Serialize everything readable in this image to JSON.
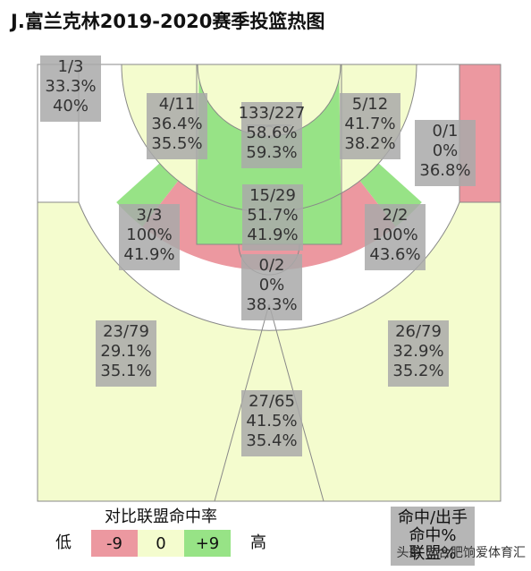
{
  "title": "J.富兰克林2019-2020赛季投篮热图",
  "colors": {
    "hot": "#97e386",
    "avg": "#f4fcce",
    "cold": "#ec98a0",
    "none": "#ffffff",
    "line": "#888888"
  },
  "chart_data": {
    "type": "heatmap",
    "title": "J.富兰克林2019-2020赛季投篮热图",
    "metrics": [
      "made/attempts",
      "fg_pct",
      "league_fg_pct"
    ],
    "zones": [
      {
        "zone": "left-corner-3",
        "made_attempts": "1/3",
        "fg_pct": "33.3%",
        "league_pct": "40%",
        "rating": "none"
      },
      {
        "zone": "left-baseline-mid",
        "made_attempts": "4/11",
        "fg_pct": "36.4%",
        "league_pct": "35.5%",
        "rating": "avg"
      },
      {
        "zone": "restricted-area",
        "made_attempts": "133/227",
        "fg_pct": "58.6%",
        "league_pct": "59.3%",
        "rating": "avg"
      },
      {
        "zone": "right-baseline-mid",
        "made_attempts": "5/12",
        "fg_pct": "41.7%",
        "league_pct": "38.2%",
        "rating": "avg"
      },
      {
        "zone": "right-corner-3",
        "made_attempts": "0/1",
        "fg_pct": "0%",
        "league_pct": "36.8%",
        "rating": "cold"
      },
      {
        "zone": "left-wing-mid",
        "made_attempts": "3/3",
        "fg_pct": "100%",
        "league_pct": "41.9%",
        "rating": "hot"
      },
      {
        "zone": "paint-non-ra",
        "made_attempts": "15/29",
        "fg_pct": "51.7%",
        "league_pct": "41.9%",
        "rating": "hot"
      },
      {
        "zone": "right-wing-mid",
        "made_attempts": "2/2",
        "fg_pct": "100%",
        "league_pct": "43.6%",
        "rating": "hot"
      },
      {
        "zone": "top-key-mid",
        "made_attempts": "0/2",
        "fg_pct": "0%",
        "league_pct": "38.3%",
        "rating": "cold"
      },
      {
        "zone": "left-wing-3",
        "made_attempts": "23/79",
        "fg_pct": "29.1%",
        "league_pct": "35.1%",
        "rating": "avg"
      },
      {
        "zone": "right-wing-3",
        "made_attempts": "26/79",
        "fg_pct": "32.9%",
        "league_pct": "35.2%",
        "rating": "avg"
      },
      {
        "zone": "top-3",
        "made_attempts": "27/65",
        "fg_pct": "41.5%",
        "league_pct": "35.4%",
        "rating": "avg"
      }
    ],
    "legend": {
      "title": "对比联盟命中率",
      "low_label": "低",
      "high_label": "高",
      "bins": [
        "-9",
        "0",
        "+9"
      ],
      "key_lines": [
        "命中/出手",
        "命中%",
        "联盟%"
      ]
    }
  },
  "watermark": "头条 @合肥饷爱体育汇"
}
